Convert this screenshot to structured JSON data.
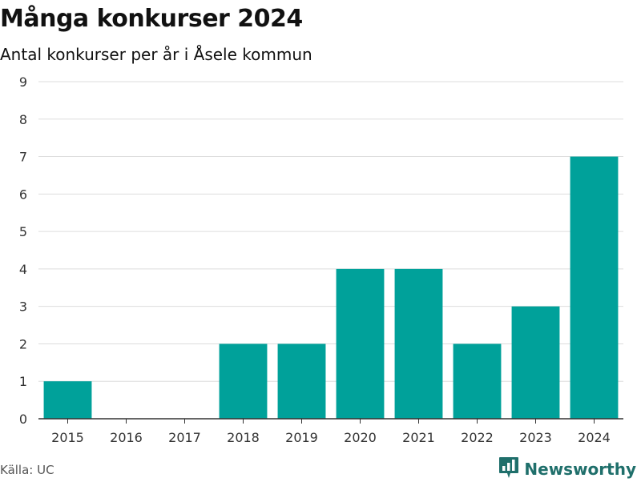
{
  "title": "Många konkurser 2024",
  "subtitle": "Antal konkurser per år i Åsele kommun",
  "source": "Källa: UC",
  "brand": {
    "name": "Newsworthy",
    "icon": "bar-chart-icon"
  },
  "colors": {
    "bar": "#00a19a",
    "grid": "#dddddd",
    "axis": "#333333",
    "brand": "#1f6f6b"
  },
  "chart_data": {
    "type": "bar",
    "categories": [
      "2015",
      "2016",
      "2017",
      "2018",
      "2019",
      "2020",
      "2021",
      "2022",
      "2023",
      "2024"
    ],
    "values": [
      1,
      0,
      0,
      2,
      2,
      4,
      4,
      2,
      3,
      7
    ],
    "ylim": [
      0,
      9
    ],
    "yticks": [
      0,
      1,
      2,
      3,
      4,
      5,
      6,
      7,
      8,
      9
    ],
    "grid": true,
    "legend": "none",
    "xlabel": "",
    "ylabel": ""
  }
}
